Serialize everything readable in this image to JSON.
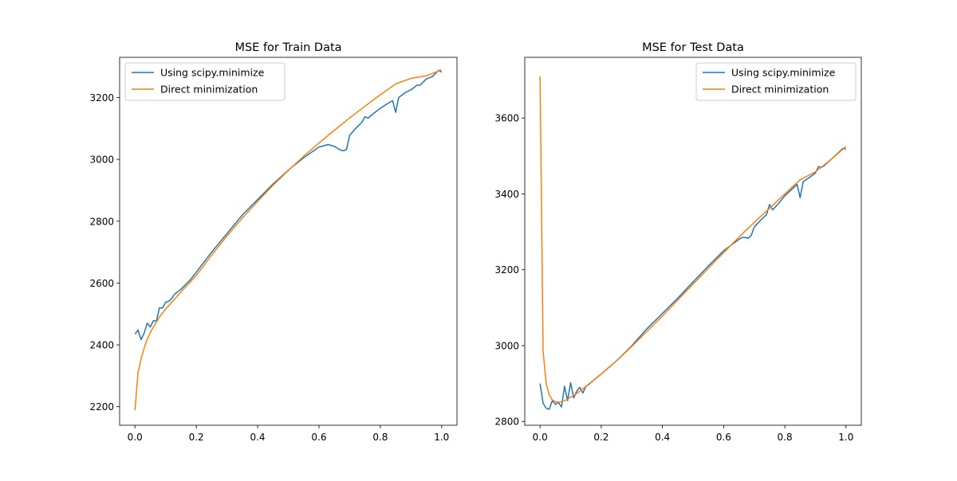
{
  "chart_data": [
    {
      "type": "line",
      "title": "MSE for Train Data",
      "xlabel": "",
      "ylabel": "",
      "xlim": [
        -0.05,
        1.05
      ],
      "ylim": [
        2140,
        3330
      ],
      "xticks": [
        0.0,
        0.2,
        0.4,
        0.6,
        0.8,
        1.0
      ],
      "xtick_labels": [
        "0.0",
        "0.2",
        "0.4",
        "0.6",
        "0.8",
        "1.0"
      ],
      "yticks": [
        2200,
        2400,
        2600,
        2800,
        3000,
        3200
      ],
      "ytick_labels": [
        "2200",
        "2400",
        "2600",
        "2800",
        "3000",
        "3200"
      ],
      "grid": false,
      "legend_position": "upper-left",
      "series": [
        {
          "name": "Using scipy.minimize",
          "color": "#1f77b4",
          "x": [
            0.0,
            0.01,
            0.02,
            0.03,
            0.04,
            0.05,
            0.06,
            0.07,
            0.08,
            0.09,
            0.1,
            0.11,
            0.12,
            0.13,
            0.14,
            0.15,
            0.16,
            0.17,
            0.18,
            0.2,
            0.25,
            0.3,
            0.35,
            0.4,
            0.45,
            0.5,
            0.55,
            0.6,
            0.63,
            0.65,
            0.66,
            0.67,
            0.68,
            0.69,
            0.7,
            0.72,
            0.74,
            0.75,
            0.76,
            0.78,
            0.8,
            0.82,
            0.84,
            0.85,
            0.86,
            0.88,
            0.9,
            0.92,
            0.93,
            0.95,
            0.97,
            0.99,
            1.0
          ],
          "y": [
            2435,
            2448,
            2417,
            2438,
            2470,
            2458,
            2478,
            2477,
            2520,
            2519,
            2538,
            2541,
            2550,
            2565,
            2572,
            2580,
            2590,
            2600,
            2610,
            2635,
            2700,
            2760,
            2820,
            2870,
            2920,
            2965,
            3005,
            3040,
            3048,
            3042,
            3036,
            3030,
            3028,
            3032,
            3078,
            3100,
            3120,
            3138,
            3133,
            3150,
            3165,
            3178,
            3190,
            3152,
            3200,
            3215,
            3225,
            3240,
            3240,
            3260,
            3268,
            3288,
            3282
          ]
        },
        {
          "name": "Direct minimization",
          "color": "#ff7f0e",
          "x": [
            0.0,
            0.01,
            0.02,
            0.03,
            0.04,
            0.05,
            0.06,
            0.07,
            0.08,
            0.09,
            0.1,
            0.12,
            0.14,
            0.16,
            0.18,
            0.2,
            0.25,
            0.3,
            0.35,
            0.4,
            0.45,
            0.5,
            0.55,
            0.6,
            0.65,
            0.7,
            0.75,
            0.8,
            0.85,
            0.9,
            0.95,
            1.0
          ],
          "y": [
            2188,
            2310,
            2355,
            2390,
            2418,
            2440,
            2458,
            2474,
            2490,
            2503,
            2515,
            2538,
            2560,
            2582,
            2603,
            2625,
            2690,
            2752,
            2810,
            2864,
            2916,
            2964,
            3010,
            3053,
            3094,
            3134,
            3172,
            3209,
            3244,
            3262,
            3270,
            3290
          ]
        }
      ]
    },
    {
      "type": "line",
      "title": "MSE for Test Data",
      "xlabel": "",
      "ylabel": "",
      "xlim": [
        -0.05,
        1.05
      ],
      "ylim": [
        2790,
        3760
      ],
      "xticks": [
        0.0,
        0.2,
        0.4,
        0.6,
        0.8,
        1.0
      ],
      "xtick_labels": [
        "0.0",
        "0.2",
        "0.4",
        "0.6",
        "0.8",
        "1.0"
      ],
      "yticks": [
        2800,
        3000,
        3200,
        3400,
        3600
      ],
      "ytick_labels": [
        "2800",
        "3000",
        "3200",
        "3400",
        "3600"
      ],
      "grid": false,
      "legend_position": "upper-right",
      "series": [
        {
          "name": "Using scipy.minimize",
          "color": "#1f77b4",
          "x": [
            0.0,
            0.01,
            0.02,
            0.03,
            0.04,
            0.05,
            0.06,
            0.07,
            0.08,
            0.09,
            0.1,
            0.11,
            0.12,
            0.13,
            0.14,
            0.15,
            0.16,
            0.17,
            0.18,
            0.2,
            0.25,
            0.3,
            0.35,
            0.4,
            0.45,
            0.5,
            0.55,
            0.6,
            0.65,
            0.66,
            0.67,
            0.68,
            0.69,
            0.7,
            0.72,
            0.74,
            0.75,
            0.76,
            0.78,
            0.8,
            0.82,
            0.84,
            0.85,
            0.86,
            0.88,
            0.9,
            0.91,
            0.92,
            0.93,
            0.95,
            0.97,
            0.99,
            1.0
          ],
          "y": [
            2900,
            2848,
            2835,
            2832,
            2855,
            2845,
            2850,
            2838,
            2893,
            2855,
            2902,
            2862,
            2880,
            2890,
            2875,
            2893,
            2898,
            2905,
            2912,
            2925,
            2960,
            3000,
            3045,
            3085,
            3125,
            3168,
            3210,
            3250,
            3280,
            3285,
            3285,
            3283,
            3290,
            3312,
            3330,
            3345,
            3372,
            3358,
            3375,
            3395,
            3410,
            3425,
            3390,
            3432,
            3443,
            3455,
            3472,
            3470,
            3475,
            3490,
            3505,
            3520,
            3518
          ]
        },
        {
          "name": "Direct minimization",
          "color": "#ff7f0e",
          "x": [
            0.0,
            0.01,
            0.02,
            0.03,
            0.04,
            0.05,
            0.06,
            0.07,
            0.08,
            0.09,
            0.1,
            0.12,
            0.14,
            0.16,
            0.18,
            0.2,
            0.25,
            0.3,
            0.35,
            0.4,
            0.45,
            0.5,
            0.55,
            0.6,
            0.65,
            0.7,
            0.75,
            0.8,
            0.85,
            0.9,
            0.95,
            1.0
          ],
          "y": [
            3710,
            2985,
            2900,
            2870,
            2857,
            2852,
            2851,
            2852,
            2855,
            2859,
            2864,
            2874,
            2886,
            2899,
            2912,
            2925,
            2960,
            2998,
            3038,
            3078,
            3120,
            3162,
            3204,
            3245,
            3286,
            3325,
            3362,
            3400,
            3437,
            3458,
            3490,
            3525
          ]
        }
      ]
    }
  ]
}
